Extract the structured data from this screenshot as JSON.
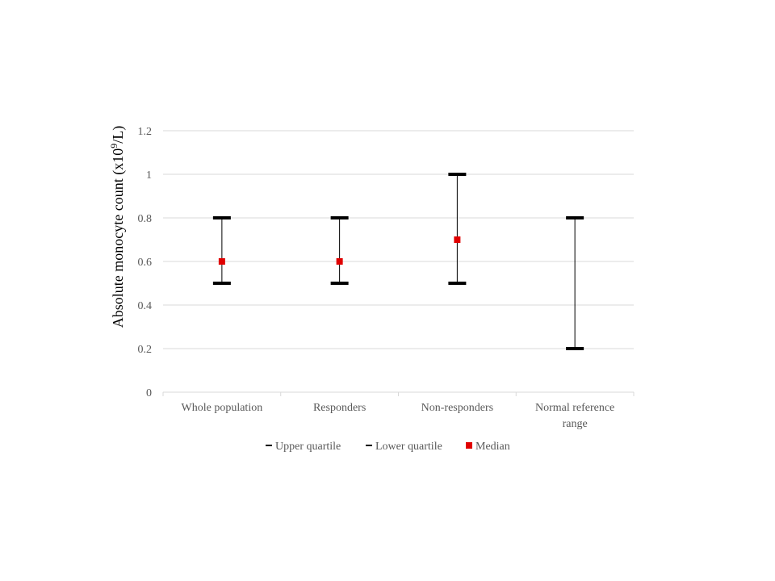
{
  "chart_data": {
    "type": "stock",
    "ylabel": {
      "prefix": "Absolute monocyte count (x10",
      "sup": "9",
      "suffix": "/L)"
    },
    "ylim": [
      0,
      1.2
    ],
    "yticks": [
      "0",
      "0.2",
      "0.4",
      "0.6",
      "0.8",
      "1",
      "1.2"
    ],
    "ytick_values": [
      0,
      0.2,
      0.4,
      0.6,
      0.8,
      1,
      1.2
    ],
    "grid": true,
    "legend_position": "bottom",
    "categories": [
      {
        "lines": [
          "Whole population"
        ]
      },
      {
        "lines": [
          "Responders"
        ]
      },
      {
        "lines": [
          "Non-responders"
        ]
      },
      {
        "lines": [
          "Normal reference",
          "range"
        ]
      }
    ],
    "series": [
      {
        "name": "Upper quartile",
        "values": [
          0.8,
          0.8,
          1.0,
          0.8
        ],
        "color": "#000000",
        "marker": "dash"
      },
      {
        "name": "Lower quartile",
        "values": [
          0.5,
          0.5,
          0.5,
          0.2
        ],
        "color": "#000000",
        "marker": "dash"
      },
      {
        "name": "Median",
        "values": [
          0.6,
          0.6,
          0.7,
          null
        ],
        "color": "#e00000",
        "marker": "square"
      }
    ]
  }
}
